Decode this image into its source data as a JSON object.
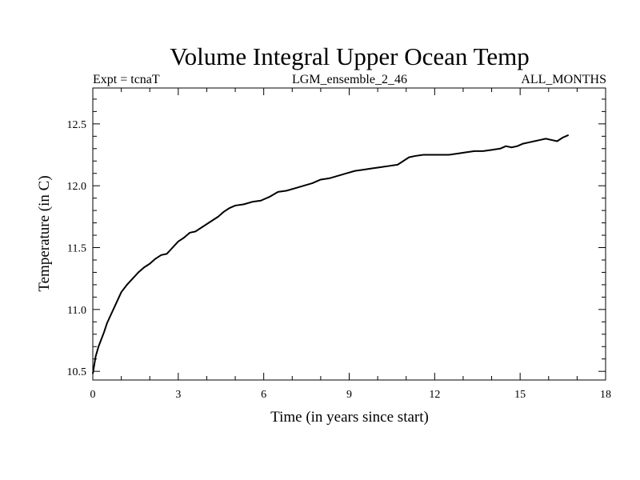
{
  "chart_data": {
    "type": "line",
    "title": "Volume Integral Upper Ocean Temp",
    "subtitle_left": "Expt = tcnaT",
    "subtitle_center": "LGM_ensemble_2_46",
    "subtitle_right": "ALL_MONTHS",
    "xlabel": "Time (in years since start)",
    "ylabel": "Temperature (in C)",
    "xlim": [
      0,
      18
    ],
    "ylim": [
      10.43,
      12.79
    ],
    "xticks": [
      0,
      3,
      6,
      9,
      12,
      15,
      18
    ],
    "yticks": [
      10.5,
      11.0,
      11.5,
      12.0,
      12.5
    ],
    "ytick_labels": [
      "10.5",
      "11.0",
      "11.5",
      "12.0",
      "12.5"
    ],
    "grid": false,
    "series": [
      {
        "name": "Temperature",
        "color": "#000000",
        "x": [
          0.0,
          0.1,
          0.2,
          0.3,
          0.4,
          0.5,
          0.6,
          0.7,
          0.8,
          0.9,
          1.0,
          1.1,
          1.2,
          1.4,
          1.6,
          1.8,
          2.0,
          2.2,
          2.4,
          2.6,
          2.8,
          3.0,
          3.2,
          3.4,
          3.6,
          3.8,
          4.0,
          4.2,
          4.4,
          4.6,
          4.8,
          5.0,
          5.3,
          5.6,
          5.9,
          6.2,
          6.5,
          6.8,
          7.1,
          7.4,
          7.7,
          8.0,
          8.3,
          8.6,
          8.9,
          9.2,
          9.5,
          9.8,
          10.1,
          10.4,
          10.7,
          10.9,
          11.1,
          11.3,
          11.6,
          11.9,
          12.2,
          12.5,
          12.8,
          13.1,
          13.4,
          13.7,
          14.0,
          14.3,
          14.5,
          14.7,
          14.9,
          15.1,
          15.3,
          15.5,
          15.7,
          15.9,
          16.1,
          16.3,
          16.5,
          16.7
        ],
        "values": [
          10.48,
          10.62,
          10.7,
          10.76,
          10.82,
          10.89,
          10.94,
          10.99,
          11.04,
          11.09,
          11.14,
          11.17,
          11.2,
          11.25,
          11.3,
          11.34,
          11.37,
          11.41,
          11.44,
          11.45,
          11.5,
          11.55,
          11.58,
          11.62,
          11.63,
          11.66,
          11.69,
          11.72,
          11.75,
          11.79,
          11.82,
          11.84,
          11.85,
          11.87,
          11.88,
          11.91,
          11.95,
          11.96,
          11.98,
          12.0,
          12.02,
          12.05,
          12.06,
          12.08,
          12.1,
          12.12,
          12.13,
          12.14,
          12.15,
          12.16,
          12.17,
          12.2,
          12.23,
          12.24,
          12.25,
          12.25,
          12.25,
          12.25,
          12.26,
          12.27,
          12.28,
          12.28,
          12.29,
          12.3,
          12.32,
          12.31,
          12.32,
          12.34,
          12.35,
          12.36,
          12.37,
          12.38,
          12.37,
          12.36,
          12.39,
          12.41
        ]
      }
    ]
  }
}
